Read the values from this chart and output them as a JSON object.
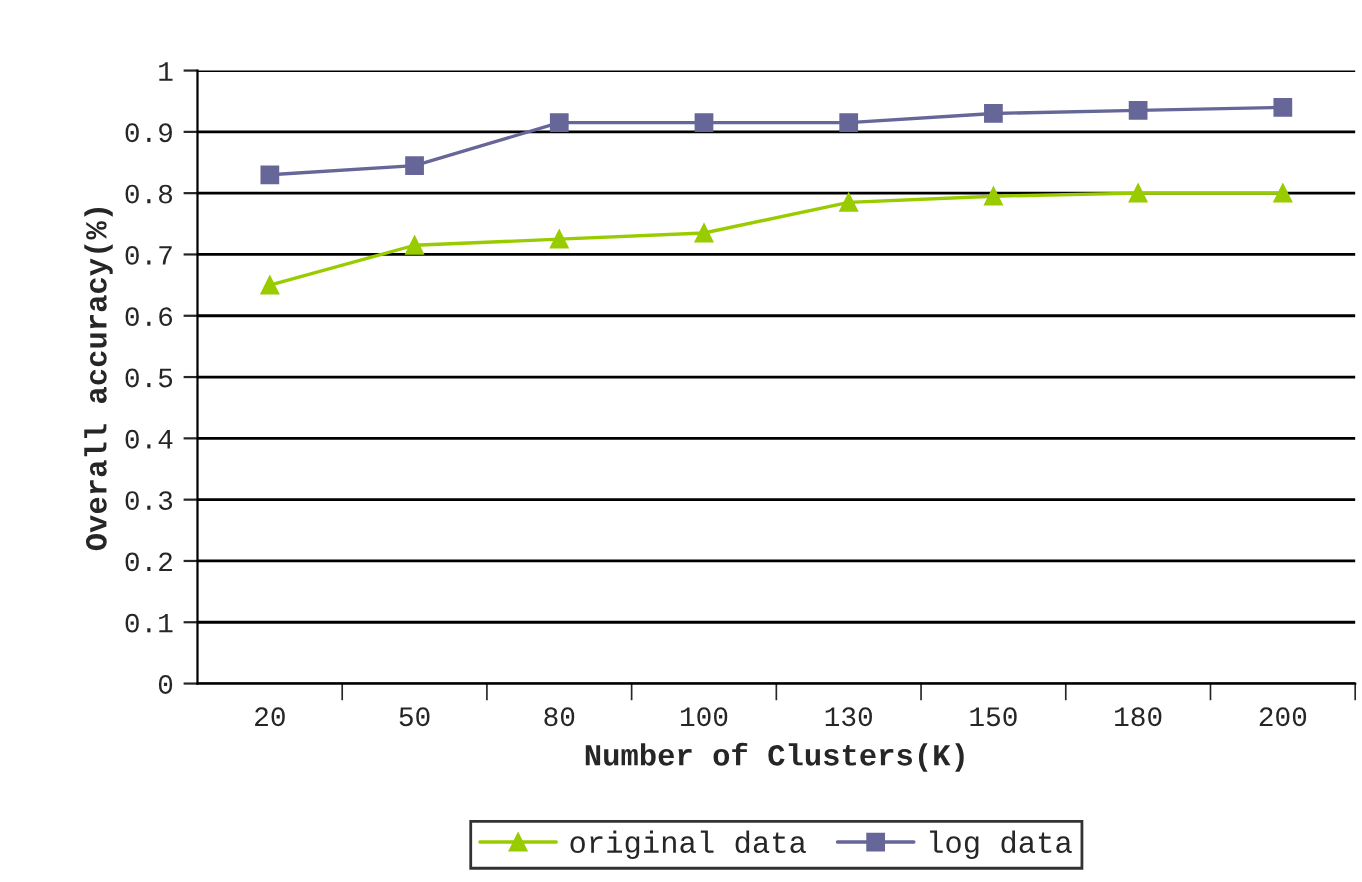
{
  "chart_data": {
    "type": "line",
    "xlabel": "Number of Clusters(K)",
    "ylabel": "Overall accuracy(%)",
    "categories": [
      "20",
      "50",
      "80",
      "100",
      "130",
      "150",
      "180",
      "200"
    ],
    "series": [
      {
        "name": "original data",
        "color": "#99cc00",
        "marker": "triangle",
        "values": [
          0.65,
          0.715,
          0.725,
          0.735,
          0.785,
          0.795,
          0.8,
          0.8
        ]
      },
      {
        "name": "log data",
        "color": "#666699",
        "marker": "square",
        "values": [
          0.83,
          0.845,
          0.915,
          0.915,
          0.915,
          0.93,
          0.935,
          0.94
        ]
      }
    ],
    "ylim": [
      0,
      1
    ],
    "yticks": [
      0,
      0.1,
      0.2,
      0.3,
      0.4,
      0.5,
      0.6,
      0.7,
      0.8,
      0.9,
      1
    ],
    "grid": "y",
    "legend": "bottom",
    "line_style": "solid"
  }
}
